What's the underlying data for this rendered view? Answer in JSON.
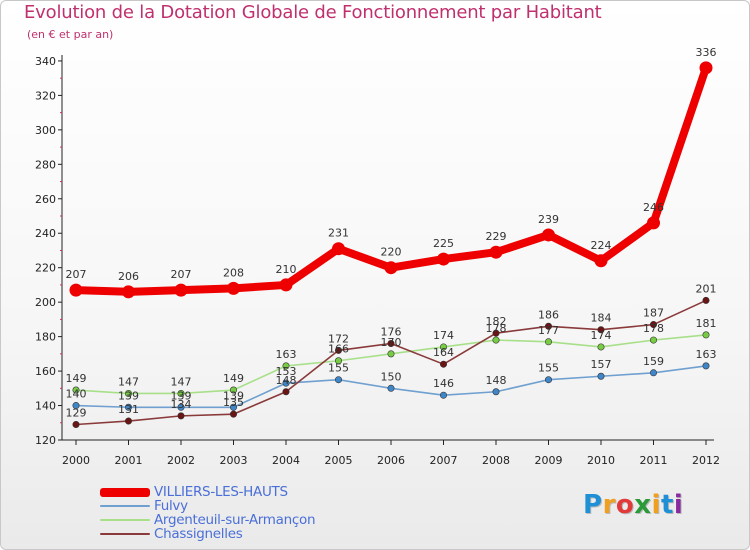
{
  "chart_data": {
    "type": "line",
    "title": "Evolution de la Dotation Globale de Fonctionnement par Habitant",
    "subtitle": "(en € et par an)",
    "categories": [
      "2000",
      "2001",
      "2002",
      "2003",
      "2004",
      "2005",
      "2006",
      "2007",
      "2008",
      "2009",
      "2010",
      "2011",
      "2012"
    ],
    "ylim": [
      120,
      340
    ],
    "yticks": [
      120,
      140,
      160,
      180,
      200,
      220,
      240,
      260,
      280,
      300,
      320,
      340
    ],
    "grid": false,
    "legend_position": "bottom-left",
    "series": [
      {
        "name": "VILLIERS-LES-HAUTS",
        "color": "#ee0000",
        "values": [
          207,
          206,
          207,
          208,
          210,
          231,
          220,
          225,
          229,
          239,
          224,
          246,
          336
        ],
        "emphasis": true
      },
      {
        "name": "Fulvy",
        "color": "#6fa0d0",
        "marker_color": "#3f86c8",
        "values": [
          140,
          139,
          139,
          139,
          153,
          155,
          150,
          146,
          148,
          155,
          157,
          159,
          163
        ]
      },
      {
        "name": "Argenteuil-sur-Armançon",
        "color": "#a8e08a",
        "marker_color": "#77cc44",
        "values": [
          149,
          147,
          147,
          149,
          163,
          166,
          170,
          174,
          178,
          177,
          174,
          178,
          181
        ]
      },
      {
        "name": "Chassignelles",
        "color": "#8a3a3a",
        "marker_color": "#6b1414",
        "values": [
          129,
          131,
          134,
          135,
          148,
          172,
          176,
          164,
          182,
          186,
          184,
          187,
          201
        ]
      }
    ],
    "data_labels": [
      [
        "207",
        "206",
        "207",
        "208",
        "210",
        "231",
        "220",
        "225",
        "229",
        "239",
        "224",
        "246",
        "336"
      ],
      [
        "140",
        "139",
        "139",
        "139",
        "153",
        "155",
        "150",
        "146",
        "148",
        "155",
        "157",
        "159",
        "163"
      ],
      [
        "149",
        "147",
        "147",
        "149",
        "163",
        "166",
        "170",
        "174",
        "178",
        "177",
        "174",
        "178",
        "181"
      ],
      [
        "129",
        "131",
        "134",
        "135",
        "148",
        "172",
        "176",
        "164",
        "182",
        "186",
        "184",
        "187",
        "201"
      ]
    ]
  },
  "brand": {
    "logo_text": "Proxiti",
    "logo_letters": [
      {
        "ch": "P",
        "color": "#1f8fd6"
      },
      {
        "ch": "r",
        "color": "#f0a020"
      },
      {
        "ch": "o",
        "color": "#e23a3a"
      },
      {
        "ch": "x",
        "color": "#2b9b3a"
      },
      {
        "ch": "i",
        "color": "#f0a020"
      },
      {
        "ch": "t",
        "color": "#1f8fd6"
      },
      {
        "ch": "i",
        "color": "#8a2aa0"
      }
    ]
  }
}
